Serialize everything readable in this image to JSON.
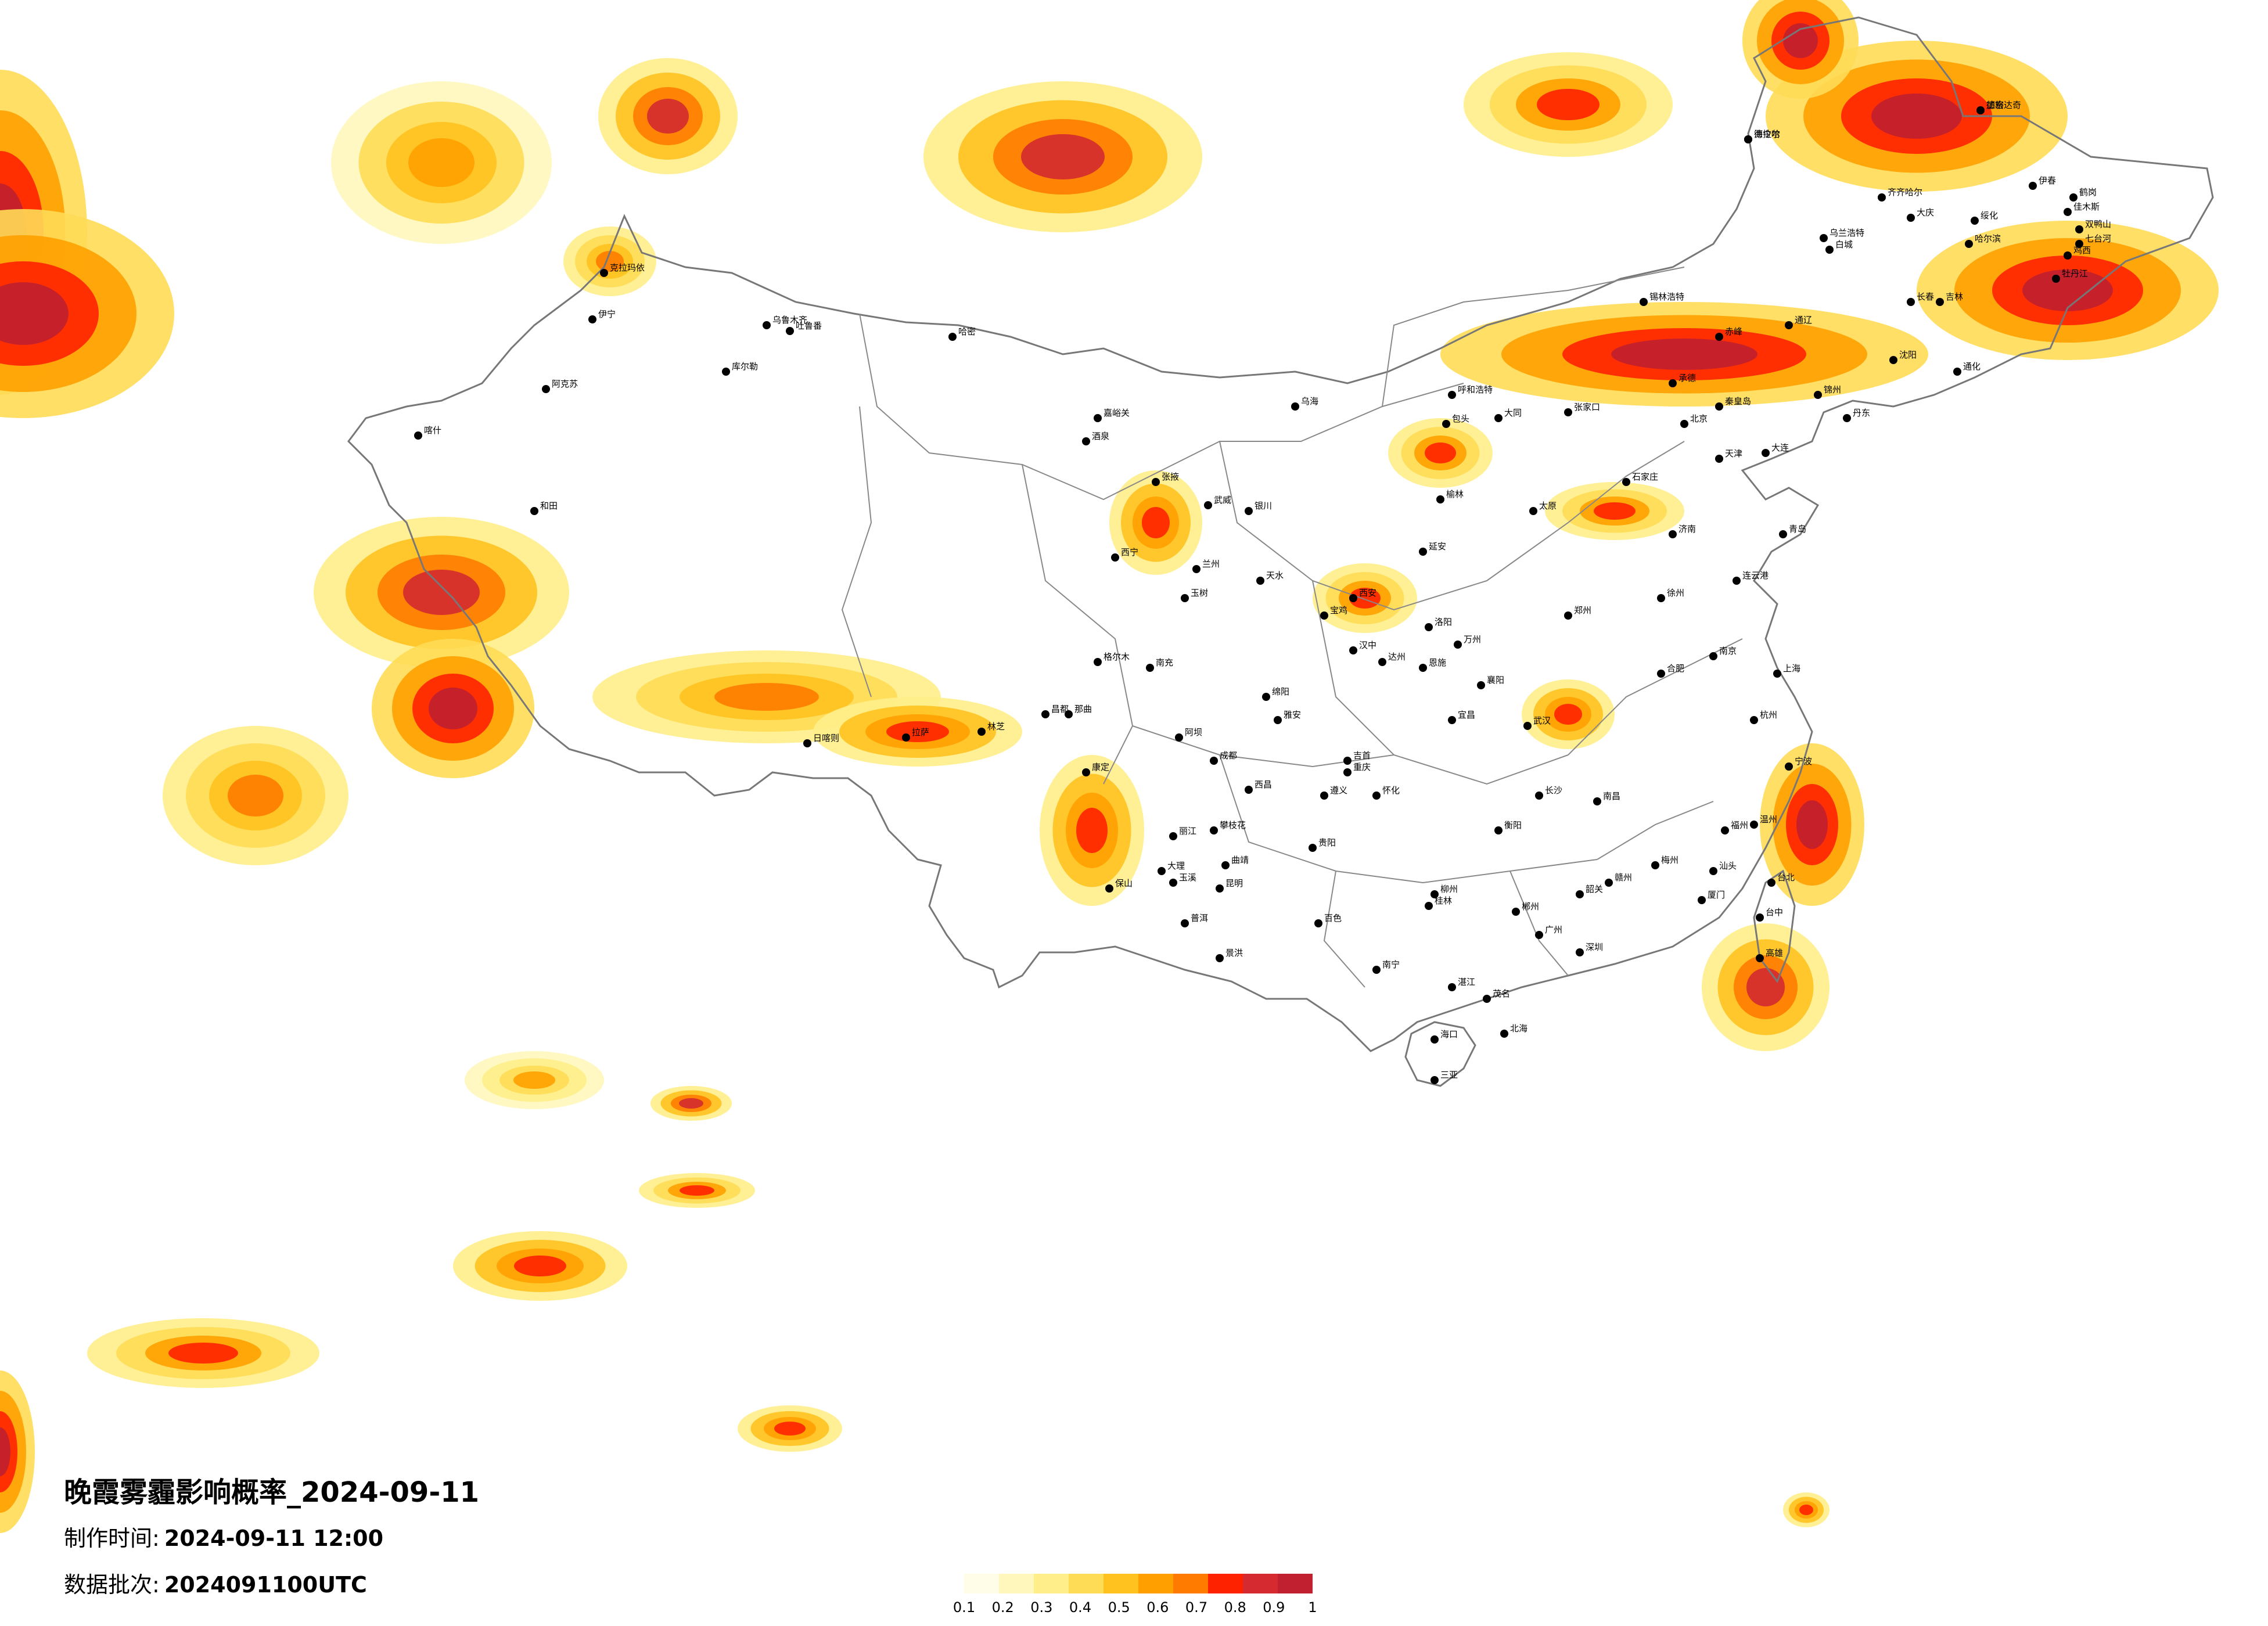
{
  "title": "晚霞雾霾影响概率_2024-09-11",
  "produce_time": {
    "label": "制作时间:",
    "value": "2024-09-11 12:00"
  },
  "data_batch": {
    "label": "数据批次:",
    "value": "2024091100UTC"
  },
  "legend": {
    "ticks": [
      "0.1",
      "0.2",
      "0.3",
      "0.4",
      "0.5",
      "0.6",
      "0.7",
      "0.8",
      "0.9",
      "1"
    ],
    "colors": [
      "#fffce8",
      "#fff7bc",
      "#ffee8a",
      "#ffdc55",
      "#ffc21f",
      "#ffa000",
      "#ff7b00",
      "#ff2200",
      "#d42a30",
      "#c02030"
    ]
  },
  "cities": [
    {
      "name": "海拉尔"
    },
    {
      "name": "加格达奇"
    },
    {
      "name": "伊春"
    },
    {
      "name": "鹤岗"
    },
    {
      "name": "佳木斯"
    },
    {
      "name": "双鸭山"
    },
    {
      "name": "七台河"
    },
    {
      "name": "鸡西"
    },
    {
      "name": "牡丹江"
    },
    {
      "name": "哈尔滨"
    },
    {
      "name": "绥化"
    },
    {
      "name": "大庆"
    },
    {
      "name": "齐齐哈尔"
    },
    {
      "name": "乌兰浩特"
    },
    {
      "name": "白城"
    },
    {
      "name": "长春"
    },
    {
      "name": "吉林"
    },
    {
      "name": "通化"
    },
    {
      "name": "沈阳"
    },
    {
      "name": "锡林浩特"
    },
    {
      "name": "呼和浩特"
    },
    {
      "name": "包头"
    },
    {
      "name": "北京"
    },
    {
      "name": "天津"
    },
    {
      "name": "石家庄"
    },
    {
      "name": "太原"
    },
    {
      "name": "济南"
    },
    {
      "name": "青岛"
    },
    {
      "name": "郑州"
    },
    {
      "name": "西安"
    },
    {
      "name": "银川"
    },
    {
      "name": "兰州"
    },
    {
      "name": "西宁"
    },
    {
      "name": "乌鲁木齐"
    },
    {
      "name": "克拉玛依"
    },
    {
      "name": "哈密"
    },
    {
      "name": "吐鲁番"
    },
    {
      "name": "库尔勒"
    },
    {
      "name": "阿克苏"
    },
    {
      "name": "喀什"
    },
    {
      "name": "和田"
    },
    {
      "name": "伊宁"
    },
    {
      "name": "格尔木"
    },
    {
      "name": "拉萨"
    },
    {
      "name": "日喀则"
    },
    {
      "name": "林芝"
    },
    {
      "name": "昌都"
    },
    {
      "name": "成都"
    },
    {
      "name": "重庆"
    },
    {
      "name": "贵阳"
    },
    {
      "name": "昆明"
    },
    {
      "name": "南宁"
    },
    {
      "name": "广州"
    },
    {
      "name": "深圳"
    },
    {
      "name": "海口"
    },
    {
      "name": "三亚"
    },
    {
      "name": "长沙"
    },
    {
      "name": "武汉"
    },
    {
      "name": "南昌"
    },
    {
      "name": "福州"
    },
    {
      "name": "杭州"
    },
    {
      "name": "南京"
    },
    {
      "name": "上海"
    },
    {
      "name": "合肥"
    },
    {
      "name": "台北"
    },
    {
      "name": "台中"
    },
    {
      "name": "高雄"
    },
    {
      "name": "大理"
    },
    {
      "name": "丽江"
    },
    {
      "name": "玉溪"
    },
    {
      "name": "曲靖"
    },
    {
      "name": "遵义"
    },
    {
      "name": "桂林"
    },
    {
      "name": "柳州"
    },
    {
      "name": "赣州"
    },
    {
      "name": "厦门"
    },
    {
      "name": "温州"
    },
    {
      "name": "宁波"
    },
    {
      "name": "徐州"
    },
    {
      "name": "连云港"
    },
    {
      "name": "洛阳"
    },
    {
      "name": "襄阳"
    },
    {
      "name": "宜昌"
    },
    {
      "name": "绵阳"
    },
    {
      "name": "汉中"
    },
    {
      "name": "延安"
    },
    {
      "name": "榆林"
    },
    {
      "name": "大同"
    },
    {
      "name": "张家口"
    },
    {
      "name": "承德"
    },
    {
      "name": "秦皇岛"
    },
    {
      "name": "大连"
    },
    {
      "name": "丹东"
    },
    {
      "name": "锦州"
    },
    {
      "name": "赤峰"
    },
    {
      "name": "通辽"
    },
    {
      "name": "乌海"
    },
    {
      "name": "嘉峪关"
    },
    {
      "name": "酒泉"
    },
    {
      "name": "张掖"
    },
    {
      "name": "武威"
    },
    {
      "name": "天水"
    },
    {
      "name": "宝鸡"
    },
    {
      "name": "雅安"
    },
    {
      "name": "西昌"
    },
    {
      "name": "攀枝花"
    },
    {
      "name": "保山"
    },
    {
      "name": "普洱"
    },
    {
      "name": "景洪"
    },
    {
      "name": "百色"
    },
    {
      "name": "北海"
    },
    {
      "name": "湛江"
    },
    {
      "name": "茂名"
    },
    {
      "name": "汕头"
    },
    {
      "name": "梅州"
    },
    {
      "name": "韶关"
    },
    {
      "name": "郴州"
    },
    {
      "name": "衡阳"
    },
    {
      "name": "怀化"
    },
    {
      "name": "吉首"
    },
    {
      "name": "恩施"
    },
    {
      "name": "万州"
    },
    {
      "name": "达州"
    },
    {
      "name": "南充"
    },
    {
      "name": "阿坝"
    },
    {
      "name": "康定"
    },
    {
      "name": "玉树"
    },
    {
      "name": "那曲"
    },
    {
      "name": "德令哈"
    },
    {
      "name": "德宏"
    }
  ]
}
